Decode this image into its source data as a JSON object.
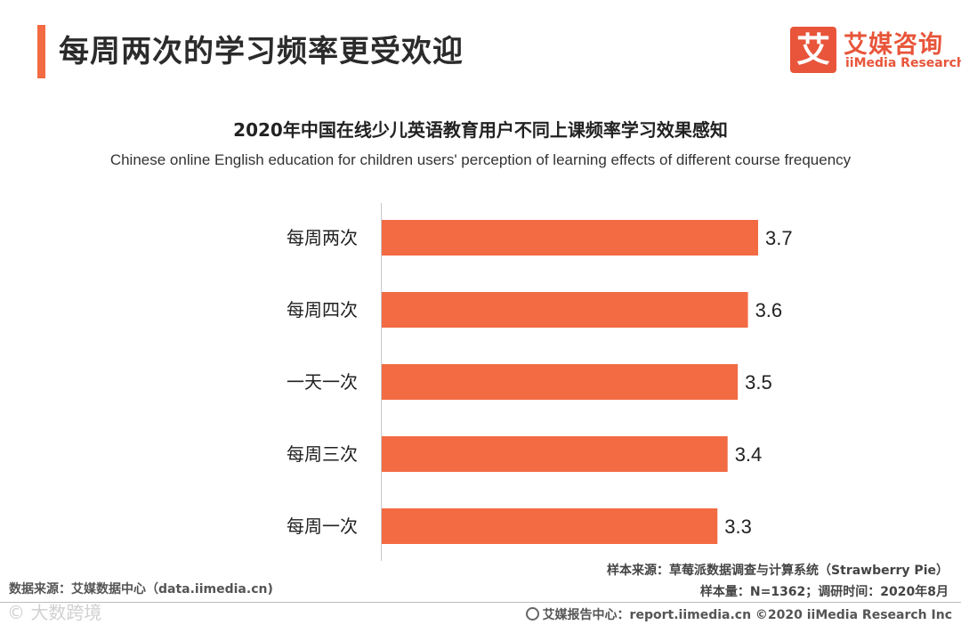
{
  "header": {
    "headline": "每周两次的学习频率更受欢迎",
    "accent_color": "#f26b43"
  },
  "logo": {
    "mark": "艾",
    "cn": "艾媒咨询",
    "en": "iiMedia Research",
    "color": "#e8553a"
  },
  "chart_data": {
    "type": "bar",
    "orientation": "horizontal",
    "title": "2020年中国在线少儿英语教育用户不同上课频率学习效果感知",
    "subtitle": "Chinese online English education for children users' perception of learning effects of different course frequency",
    "categories": [
      "每周两次",
      "每周四次",
      "一天一次",
      "每周三次",
      "每周一次"
    ],
    "values": [
      3.7,
      3.6,
      3.5,
      3.4,
      3.3
    ],
    "xlim": [
      0,
      3.7
    ],
    "bar_color": "#f26b43",
    "data_labels": true
  },
  "footer": {
    "source_left": "数据来源：艾媒数据中心（data.iimedia.cn)",
    "source_right": "样本来源：草莓派数据调查与计算系统（Strawberry Pie）",
    "sample": "样本量：N=1362；调研时间：2020年8月",
    "watermark": "© 大数跨境",
    "copyright": "艾媒报告中心：report.iimedia.cn  ©2020  iiMedia Research  Inc"
  }
}
